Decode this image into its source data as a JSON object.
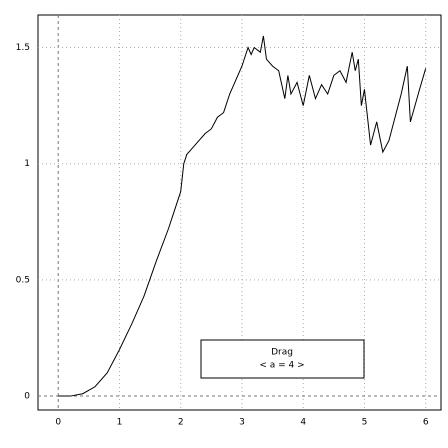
{
  "chart_data": {
    "type": "line",
    "color": "#000000",
    "grid": true,
    "xlim": [
      -0.33,
      6.25
    ],
    "ylim": [
      -0.06,
      1.64
    ],
    "xticks": [
      0,
      1,
      2,
      3,
      4,
      5,
      6
    ],
    "yticks": [
      0,
      0.5,
      1,
      1.5
    ],
    "x": [
      0,
      0.2,
      0.4,
      0.6,
      0.8,
      1.0,
      1.2,
      1.4,
      1.6,
      1.8,
      1.9,
      2.0,
      2.05,
      2.1,
      2.2,
      2.3,
      2.4,
      2.5,
      2.6,
      2.7,
      2.8,
      2.9,
      3.0,
      3.1,
      3.15,
      3.2,
      3.3,
      3.35,
      3.4,
      3.5,
      3.6,
      3.7,
      3.75,
      3.8,
      3.9,
      4.0,
      4.1,
      4.2,
      4.3,
      4.4,
      4.5,
      4.6,
      4.7,
      4.8,
      4.85,
      4.9,
      4.95,
      5.0,
      5.05,
      5.1,
      5.2,
      5.3,
      5.4,
      5.5,
      5.6,
      5.7,
      5.75,
      5.9,
      6.0
    ],
    "values": [
      0,
      0,
      0.01,
      0.04,
      0.1,
      0.2,
      0.31,
      0.43,
      0.58,
      0.72,
      0.8,
      0.88,
      1.0,
      1.04,
      1.07,
      1.1,
      1.13,
      1.15,
      1.2,
      1.22,
      1.3,
      1.36,
      1.42,
      1.5,
      1.47,
      1.5,
      1.48,
      1.55,
      1.45,
      1.42,
      1.4,
      1.28,
      1.38,
      1.3,
      1.35,
      1.25,
      1.38,
      1.28,
      1.34,
      1.3,
      1.38,
      1.4,
      1.35,
      1.48,
      1.4,
      1.45,
      1.25,
      1.32,
      1.2,
      1.08,
      1.18,
      1.05,
      1.1,
      1.2,
      1.3,
      1.42,
      1.18,
      1.32,
      1.41
    ],
    "annotations": [
      "Drag",
      "< a = 4 >"
    ]
  }
}
